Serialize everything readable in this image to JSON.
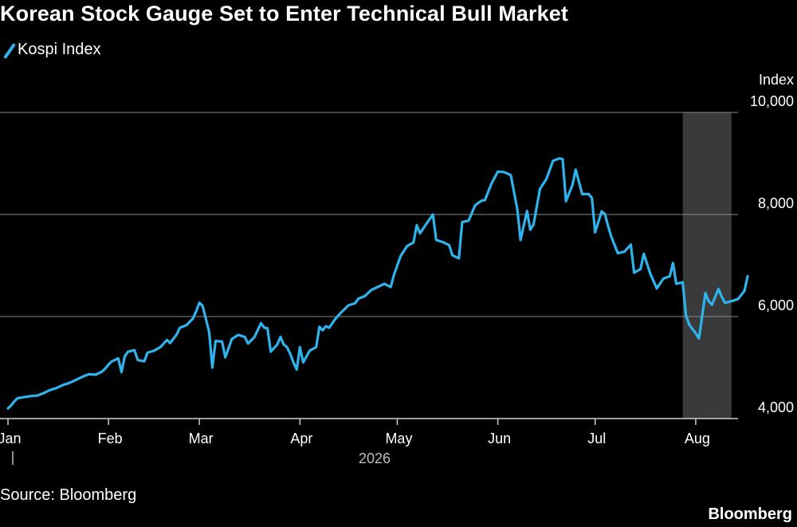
{
  "title": "Korean Stock Gauge Set to Enter Technical Bull Market",
  "source": "Source: Bloomberg",
  "brand": "Bloomberg",
  "colors": {
    "line": "#2fb3ec",
    "grid": "#8a8a8a",
    "shade": "#3a3a3a"
  },
  "chart_data": {
    "type": "line",
    "title": "Korean Stock Gauge Set to Enter Technical Bull Market",
    "ylabel": "Index",
    "ylim": [
      4000,
      10000
    ],
    "yticks": [
      4000,
      6000,
      8000,
      10000
    ],
    "ytick_labels": [
      "4,000",
      "6,000",
      "8,000",
      "10,000"
    ],
    "grid": true,
    "legend": "top-left",
    "year_label": "2026",
    "months": [
      "Jan",
      "Feb",
      "Mar",
      "Apr",
      "May",
      "Jun",
      "Jul",
      "Aug"
    ],
    "shaded_range": [
      "2026-07-28",
      "2026-08-12"
    ],
    "series": [
      {
        "name": "Kospi Index",
        "points": [
          [
            "2026-01-01",
            4200
          ],
          [
            "2026-01-02",
            4260
          ],
          [
            "2026-01-03",
            4340
          ],
          [
            "2026-01-04",
            4400
          ],
          [
            "2026-01-06",
            4420
          ],
          [
            "2026-01-08",
            4440
          ],
          [
            "2026-01-10",
            4450
          ],
          [
            "2026-01-12",
            4500
          ],
          [
            "2026-01-14",
            4560
          ],
          [
            "2026-01-16",
            4600
          ],
          [
            "2026-01-18",
            4660
          ],
          [
            "2026-01-20",
            4700
          ],
          [
            "2026-01-22",
            4760
          ],
          [
            "2026-01-24",
            4820
          ],
          [
            "2026-01-26",
            4870
          ],
          [
            "2026-01-28",
            4860
          ],
          [
            "2026-01-30",
            4920
          ],
          [
            "2026-01-31",
            4980
          ],
          [
            "2026-02-01",
            5060
          ],
          [
            "2026-02-02",
            5120
          ],
          [
            "2026-02-04",
            5180
          ],
          [
            "2026-02-05",
            4910
          ],
          [
            "2026-02-06",
            5220
          ],
          [
            "2026-02-07",
            5310
          ],
          [
            "2026-02-09",
            5340
          ],
          [
            "2026-02-10",
            5150
          ],
          [
            "2026-02-12",
            5120
          ],
          [
            "2026-02-13",
            5290
          ],
          [
            "2026-02-15",
            5330
          ],
          [
            "2026-02-17",
            5400
          ],
          [
            "2026-02-19",
            5540
          ],
          [
            "2026-02-20",
            5480
          ],
          [
            "2026-02-22",
            5650
          ],
          [
            "2026-02-23",
            5780
          ],
          [
            "2026-02-25",
            5830
          ],
          [
            "2026-02-27",
            5960
          ],
          [
            "2026-02-28",
            6100
          ],
          [
            "2026-03-01",
            6270
          ],
          [
            "2026-03-02",
            6210
          ],
          [
            "2026-03-04",
            5700
          ],
          [
            "2026-03-05",
            5000
          ],
          [
            "2026-03-06",
            5520
          ],
          [
            "2026-03-08",
            5510
          ],
          [
            "2026-03-09",
            5200
          ],
          [
            "2026-03-11",
            5560
          ],
          [
            "2026-03-13",
            5640
          ],
          [
            "2026-03-15",
            5600
          ],
          [
            "2026-03-16",
            5470
          ],
          [
            "2026-03-18",
            5600
          ],
          [
            "2026-03-20",
            5870
          ],
          [
            "2026-03-21",
            5780
          ],
          [
            "2026-03-22",
            5770
          ],
          [
            "2026-03-23",
            5310
          ],
          [
            "2026-03-25",
            5450
          ],
          [
            "2026-03-26",
            5600
          ],
          [
            "2026-03-27",
            5450
          ],
          [
            "2026-03-28",
            5400
          ],
          [
            "2026-03-29",
            5270
          ],
          [
            "2026-03-30",
            5100
          ],
          [
            "2026-03-31",
            4960
          ],
          [
            "2026-04-01",
            5400
          ],
          [
            "2026-04-02",
            5100
          ],
          [
            "2026-04-04",
            5330
          ],
          [
            "2026-04-06",
            5400
          ],
          [
            "2026-04-07",
            5800
          ],
          [
            "2026-04-08",
            5730
          ],
          [
            "2026-04-09",
            5810
          ],
          [
            "2026-04-10",
            5780
          ],
          [
            "2026-04-12",
            5960
          ],
          [
            "2026-04-14",
            6100
          ],
          [
            "2026-04-16",
            6220
          ],
          [
            "2026-04-18",
            6260
          ],
          [
            "2026-04-19",
            6350
          ],
          [
            "2026-04-21",
            6400
          ],
          [
            "2026-04-23",
            6520
          ],
          [
            "2026-04-25",
            6580
          ],
          [
            "2026-04-27",
            6640
          ],
          [
            "2026-04-29",
            6580
          ],
          [
            "2026-04-30",
            6820
          ],
          [
            "2026-05-02",
            7180
          ],
          [
            "2026-05-04",
            7380
          ],
          [
            "2026-05-06",
            7450
          ],
          [
            "2026-05-07",
            7790
          ],
          [
            "2026-05-08",
            7630
          ],
          [
            "2026-05-10",
            7820
          ],
          [
            "2026-05-12",
            8000
          ],
          [
            "2026-05-13",
            7500
          ],
          [
            "2026-05-15",
            7460
          ],
          [
            "2026-05-17",
            7400
          ],
          [
            "2026-05-18",
            7200
          ],
          [
            "2026-05-20",
            7140
          ],
          [
            "2026-05-21",
            7850
          ],
          [
            "2026-05-23",
            7880
          ],
          [
            "2026-05-25",
            8180
          ],
          [
            "2026-05-27",
            8270
          ],
          [
            "2026-05-28",
            8280
          ],
          [
            "2026-05-30",
            8600
          ],
          [
            "2026-06-01",
            8840
          ],
          [
            "2026-06-03",
            8830
          ],
          [
            "2026-06-05",
            8770
          ],
          [
            "2026-06-07",
            8100
          ],
          [
            "2026-06-08",
            7500
          ],
          [
            "2026-06-10",
            8070
          ],
          [
            "2026-06-11",
            7700
          ],
          [
            "2026-06-12",
            7800
          ],
          [
            "2026-06-14",
            8500
          ],
          [
            "2026-06-16",
            8700
          ],
          [
            "2026-06-18",
            9050
          ],
          [
            "2026-06-20",
            9100
          ],
          [
            "2026-06-21",
            9080
          ],
          [
            "2026-06-22",
            8260
          ],
          [
            "2026-06-24",
            8580
          ],
          [
            "2026-06-25",
            8880
          ],
          [
            "2026-06-27",
            8400
          ],
          [
            "2026-06-29",
            8400
          ],
          [
            "2026-06-30",
            8320
          ],
          [
            "2026-07-01",
            7650
          ],
          [
            "2026-07-03",
            8060
          ],
          [
            "2026-07-04",
            8010
          ],
          [
            "2026-07-05",
            7770
          ],
          [
            "2026-07-06",
            7560
          ],
          [
            "2026-07-08",
            7240
          ],
          [
            "2026-07-10",
            7270
          ],
          [
            "2026-07-12",
            7410
          ],
          [
            "2026-07-13",
            6860
          ],
          [
            "2026-07-15",
            6930
          ],
          [
            "2026-07-16",
            7230
          ],
          [
            "2026-07-18",
            6840
          ],
          [
            "2026-07-20",
            6550
          ],
          [
            "2026-07-22",
            6740
          ],
          [
            "2026-07-24",
            6790
          ],
          [
            "2026-07-25",
            7050
          ],
          [
            "2026-07-26",
            6640
          ],
          [
            "2026-07-28",
            6670
          ],
          [
            "2026-07-29",
            6020
          ],
          [
            "2026-07-30",
            5840
          ],
          [
            "2026-08-01",
            5670
          ],
          [
            "2026-08-02",
            5570
          ],
          [
            "2026-08-04",
            6460
          ],
          [
            "2026-08-05",
            6300
          ],
          [
            "2026-08-06",
            6230
          ],
          [
            "2026-08-08",
            6540
          ],
          [
            "2026-08-09",
            6390
          ],
          [
            "2026-08-10",
            6270
          ],
          [
            "2026-08-12",
            6300
          ],
          [
            "2026-08-14",
            6340
          ],
          [
            "2026-08-16",
            6500
          ],
          [
            "2026-08-17",
            6790
          ]
        ]
      }
    ]
  }
}
